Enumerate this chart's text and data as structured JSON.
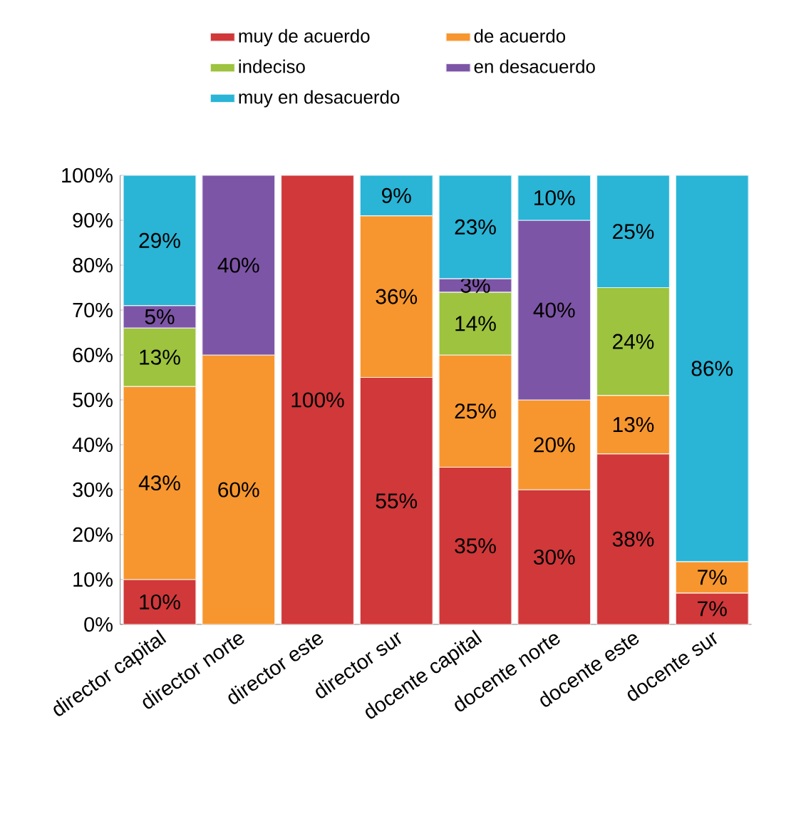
{
  "chart_data": {
    "type": "bar",
    "stacked": true,
    "categories": [
      "director capital",
      "director norte",
      "director este",
      "director sur",
      "docente capital",
      "docente norte",
      "docente este",
      "docente sur"
    ],
    "series": [
      {
        "name": "muy de acuerdo",
        "color": "#d0383a",
        "values": [
          10,
          null,
          100,
          55,
          35,
          30,
          38,
          7
        ],
        "value_labels": [
          "10%",
          null,
          "100%",
          "55%",
          "35%",
          "30%",
          "38%",
          "7%"
        ]
      },
      {
        "name": "de acuerdo",
        "color": "#f7962e",
        "values": [
          43,
          60,
          null,
          36,
          25,
          20,
          13,
          7
        ],
        "value_labels": [
          "43%",
          "60%",
          null,
          "36%",
          "25%",
          "20%",
          "13%",
          "7%"
        ]
      },
      {
        "name": "indeciso",
        "color": "#9dc33f",
        "values": [
          13,
          null,
          null,
          null,
          14,
          null,
          24,
          null
        ],
        "value_labels": [
          "13%",
          null,
          null,
          null,
          "14%",
          null,
          "24%",
          null
        ]
      },
      {
        "name": "en desacuerdo",
        "color": "#7d55a6",
        "values": [
          5,
          40,
          null,
          null,
          3,
          40,
          null,
          null
        ],
        "value_labels": [
          "5%",
          "40%",
          null,
          null,
          "3%",
          "40%",
          null,
          null
        ]
      },
      {
        "name": "muy en desacuerdo",
        "color": "#2ab4d6",
        "values": [
          29,
          null,
          null,
          9,
          23,
          10,
          25,
          86
        ],
        "value_labels": [
          "29%",
          null,
          null,
          "9%",
          "23%",
          "10%",
          "25%",
          "86%"
        ]
      }
    ],
    "ylim": [
      0,
      100
    ],
    "yticks": [
      {
        "value": 0,
        "label": "0%"
      },
      {
        "value": 10,
        "label": "10%"
      },
      {
        "value": 20,
        "label": "20%"
      },
      {
        "value": 30,
        "label": "30%"
      },
      {
        "value": 40,
        "label": "40%"
      },
      {
        "value": 50,
        "label": "50%"
      },
      {
        "value": 60,
        "label": "60%"
      },
      {
        "value": 70,
        "label": "70%"
      },
      {
        "value": 80,
        "label": "80%"
      },
      {
        "value": 90,
        "label": "90%"
      },
      {
        "value": 100,
        "label": "100%"
      }
    ],
    "legend": "top",
    "grid": false
  }
}
